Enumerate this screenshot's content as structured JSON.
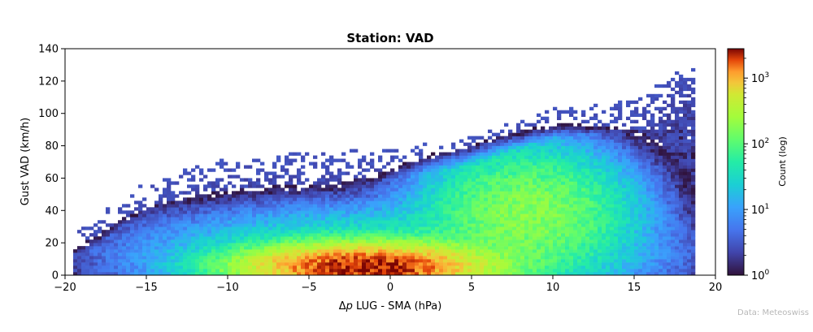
{
  "chart_data": {
    "type": "heatmap",
    "title": "Station: VAD",
    "xlabel_prefix": "Δ",
    "xlabel_var": "p",
    "xlabel_rest": " LUG - SMA (hPa)",
    "ylabel": "Gust VAD (km/h)",
    "xlim": [
      -20,
      20
    ],
    "ylim": [
      0,
      140
    ],
    "x_ticks": [
      -20,
      -15,
      -10,
      -5,
      0,
      5,
      10,
      15,
      20
    ],
    "x_tick_labels": [
      "−20",
      "−15",
      "−10",
      "−5",
      "0",
      "5",
      "10",
      "15",
      "20"
    ],
    "y_ticks": [
      0,
      20,
      40,
      60,
      80,
      100,
      120,
      140
    ],
    "y_tick_labels": [
      "0",
      "20",
      "40",
      "60",
      "80",
      "100",
      "120",
      "140"
    ],
    "grid": false,
    "colormap": "turbo",
    "colorbar": {
      "label": "Count (log)",
      "scale": "log",
      "range": [
        1,
        2800
      ],
      "ticks": [
        1,
        10,
        100,
        1000
      ],
      "tick_base": "10",
      "tick_exponents": [
        "0",
        "1",
        "2",
        "3"
      ]
    },
    "bin_width_x": 0.25,
    "bin_width_y": 2,
    "density_model": {
      "description": "approximate counts per bin read from colour; main core near x=-2..2, y=2..12",
      "cores": [
        {
          "x_center": -1.5,
          "x_halfwidth": 4.5,
          "y_center": 6,
          "peak_count": 2500
        },
        {
          "x_center": 8.5,
          "x_halfwidth": 4,
          "y_center": 40,
          "peak_count": 150
        }
      ],
      "x_extent": [
        -19.5,
        18.8
      ],
      "ridge_points": [
        [
          -19,
          12
        ],
        [
          -15,
          40
        ],
        [
          -10,
          55
        ],
        [
          -5,
          58
        ],
        [
          0,
          60
        ],
        [
          5,
          68
        ],
        [
          10,
          85
        ],
        [
          15,
          90
        ],
        [
          18,
          110
        ]
      ]
    }
  },
  "credit": "Data: Meteoswiss"
}
